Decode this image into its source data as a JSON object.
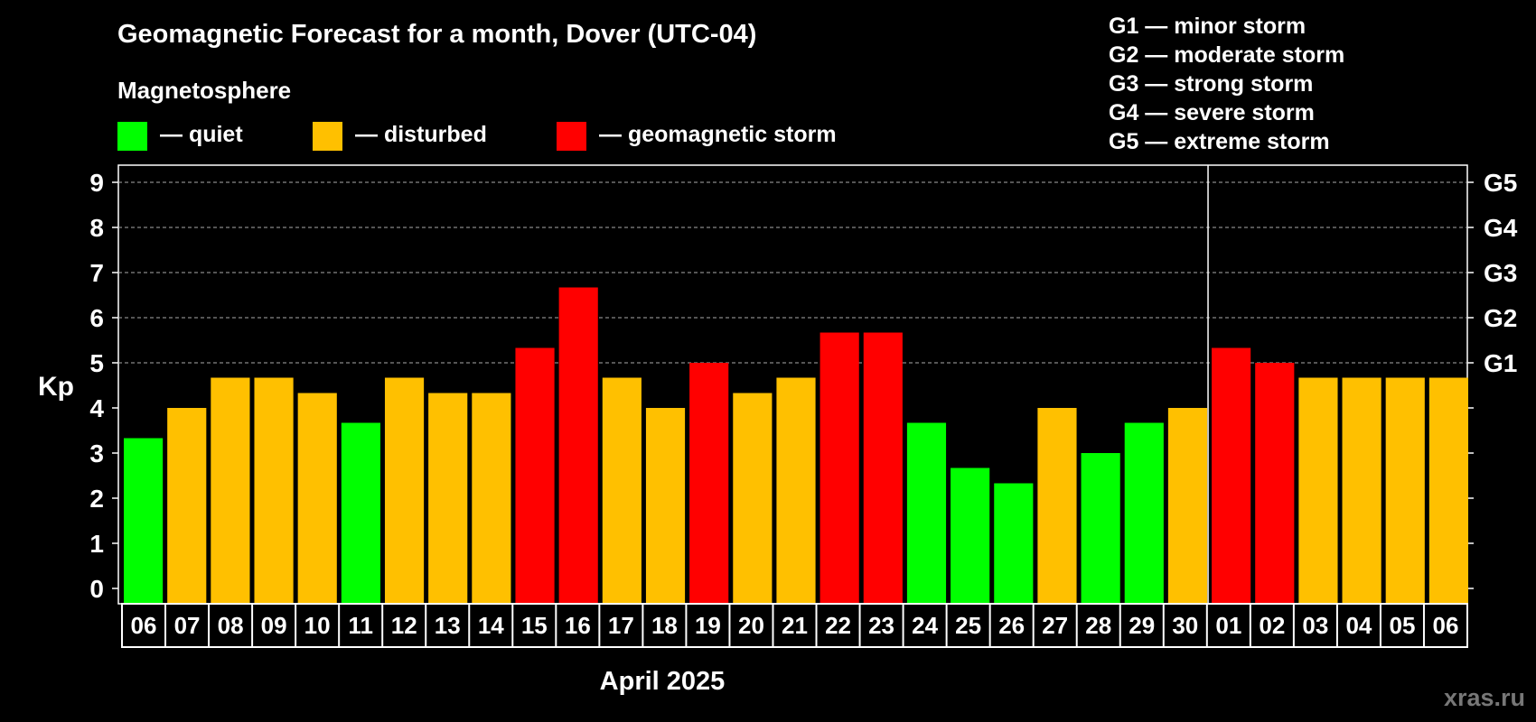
{
  "chart_data": {
    "type": "bar",
    "title": "Geomagnetic Forecast for a month, Dover (UTC-04)",
    "xlabel": "April 2025",
    "ylabel": "Kp",
    "ylim": [
      0,
      9
    ],
    "y_ticks": [
      "0",
      "1",
      "2",
      "3",
      "4",
      "5",
      "6",
      "7",
      "8",
      "9"
    ],
    "right_axis_labels": [
      {
        "kp": 5,
        "label": "G1"
      },
      {
        "kp": 6,
        "label": "G2"
      },
      {
        "kp": 7,
        "label": "G3"
      },
      {
        "kp": 8,
        "label": "G4"
      },
      {
        "kp": 9,
        "label": "G5"
      }
    ],
    "grid": "dashed horizontal at Kp 5-9",
    "categories": [
      "06",
      "07",
      "08",
      "09",
      "10",
      "11",
      "12",
      "13",
      "14",
      "15",
      "16",
      "17",
      "18",
      "19",
      "20",
      "21",
      "22",
      "23",
      "24",
      "25",
      "26",
      "27",
      "28",
      "29",
      "30",
      "01",
      "02",
      "03",
      "04",
      "05",
      "06"
    ],
    "values": [
      3.33,
      4.0,
      4.67,
      4.67,
      4.33,
      3.67,
      4.67,
      4.33,
      4.33,
      5.33,
      6.67,
      4.67,
      4.0,
      5.0,
      4.33,
      4.67,
      5.67,
      5.67,
      3.67,
      2.67,
      2.33,
      4.0,
      3.0,
      3.67,
      4.0,
      5.33,
      5.0,
      4.67,
      4.67,
      4.67,
      4.67
    ],
    "month_separator_after": "30",
    "legend": {
      "heading": "Magnetosphere",
      "items": [
        {
          "key": "quiet",
          "label": "— quiet",
          "color": "#00ff00"
        },
        {
          "key": "disturbed",
          "label": "— disturbed",
          "color": "#ffc000"
        },
        {
          "key": "storm",
          "label": "— geomagnetic storm",
          "color": "#ff0000"
        }
      ]
    },
    "storm_scale": [
      "G1 — minor storm",
      "G2 — moderate storm",
      "G3 — strong storm",
      "G4 — severe storm",
      "G5 — extreme storm"
    ]
  },
  "watermark": "xras.ru"
}
